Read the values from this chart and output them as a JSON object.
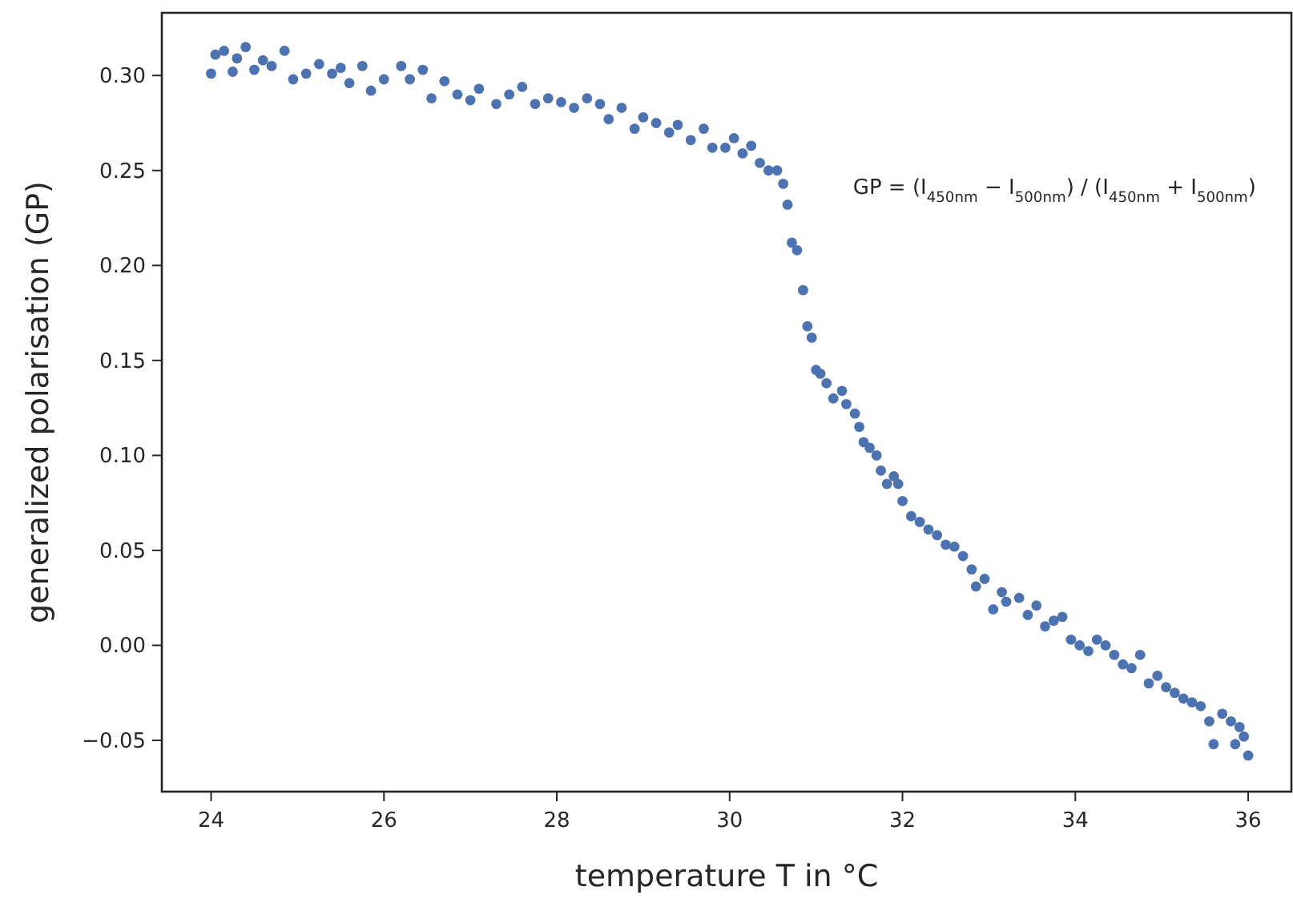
{
  "chart_data": {
    "type": "scatter",
    "xlabel": "temperature T in °C",
    "ylabel": "generalized polarisation (GP)",
    "annotations": [
      "GP = (I$_{450nm}$ − I$_{500nm}$) / (I$_{450nm}$ + I$_{500nm}$)"
    ],
    "xlim": [
      23.43,
      36.5
    ],
    "ylim": [
      -0.077,
      0.333
    ],
    "xticks": [
      24,
      26,
      28,
      30,
      32,
      34,
      36
    ],
    "yticks": [
      {
        "value": -0.05,
        "label": "−0.05"
      },
      {
        "value": 0,
        "label": "0.00"
      },
      {
        "value": 0.05,
        "label": "0.05"
      },
      {
        "value": 0.1,
        "label": "0.10"
      },
      {
        "value": 0.15,
        "label": "0.15"
      },
      {
        "value": 0.2,
        "label": "0.20"
      },
      {
        "value": 0.25,
        "label": "0.25"
      },
      {
        "value": 0.3,
        "label": "0.30"
      }
    ],
    "grid": false,
    "marker": "circle",
    "series": [
      {
        "color": "#4c72b0",
        "x": [
          24.0,
          24.05,
          24.15,
          24.25,
          24.3,
          24.4,
          24.5,
          24.6,
          24.7,
          24.85,
          24.95,
          25.1,
          25.25,
          25.4,
          25.5,
          25.6,
          25.75,
          25.85,
          26.0,
          26.2,
          26.3,
          26.45,
          26.55,
          26.7,
          26.85,
          27.0,
          27.1,
          27.3,
          27.45,
          27.6,
          27.75,
          27.9,
          28.05,
          28.2,
          28.35,
          28.5,
          28.6,
          28.75,
          28.9,
          29.0,
          29.15,
          29.3,
          29.4,
          29.55,
          29.7,
          29.8,
          29.95,
          30.05,
          30.15,
          30.25,
          30.35,
          30.45,
          30.55,
          30.62,
          30.67,
          30.72,
          30.78,
          30.85,
          30.9,
          30.95,
          31.0,
          31.05,
          31.12,
          31.2,
          31.3,
          31.35,
          31.45,
          31.5,
          31.55,
          31.62,
          31.7,
          31.75,
          31.82,
          31.9,
          31.95,
          32.0,
          32.1,
          32.2,
          32.3,
          32.4,
          32.5,
          32.6,
          32.7,
          32.8,
          32.85,
          32.95,
          33.05,
          33.15,
          33.2,
          33.35,
          33.45,
          33.55,
          33.65,
          33.75,
          33.85,
          33.95,
          34.05,
          34.15,
          34.25,
          34.35,
          34.45,
          34.55,
          34.65,
          34.75,
          34.85,
          34.95,
          35.05,
          35.15,
          35.25,
          35.35,
          35.45,
          35.55,
          35.6,
          35.7,
          35.8,
          35.85,
          35.9,
          35.95,
          36.0
        ],
        "values": [
          0.301,
          0.311,
          0.313,
          0.302,
          0.309,
          0.315,
          0.303,
          0.308,
          0.305,
          0.313,
          0.298,
          0.301,
          0.306,
          0.301,
          0.304,
          0.296,
          0.305,
          0.292,
          0.298,
          0.305,
          0.298,
          0.303,
          0.288,
          0.297,
          0.29,
          0.287,
          0.293,
          0.285,
          0.29,
          0.294,
          0.285,
          0.288,
          0.286,
          0.283,
          0.288,
          0.285,
          0.277,
          0.283,
          0.272,
          0.278,
          0.275,
          0.27,
          0.274,
          0.266,
          0.272,
          0.262,
          0.262,
          0.267,
          0.259,
          0.263,
          0.254,
          0.25,
          0.25,
          0.243,
          0.232,
          0.212,
          0.208,
          0.187,
          0.168,
          0.162,
          0.145,
          0.143,
          0.138,
          0.13,
          0.134,
          0.127,
          0.122,
          0.115,
          0.107,
          0.104,
          0.1,
          0.092,
          0.085,
          0.089,
          0.085,
          0.076,
          0.068,
          0.065,
          0.061,
          0.058,
          0.053,
          0.052,
          0.047,
          0.04,
          0.031,
          0.035,
          0.019,
          0.028,
          0.023,
          0.025,
          0.016,
          0.021,
          0.01,
          0.013,
          0.015,
          0.003,
          0.0,
          -0.003,
          0.003,
          0.0,
          -0.005,
          -0.01,
          -0.012,
          -0.005,
          -0.02,
          -0.016,
          -0.022,
          -0.025,
          -0.028,
          -0.03,
          -0.032,
          -0.04,
          -0.052,
          -0.036,
          -0.04,
          -0.052,
          -0.043,
          -0.048,
          -0.058
        ]
      }
    ]
  }
}
